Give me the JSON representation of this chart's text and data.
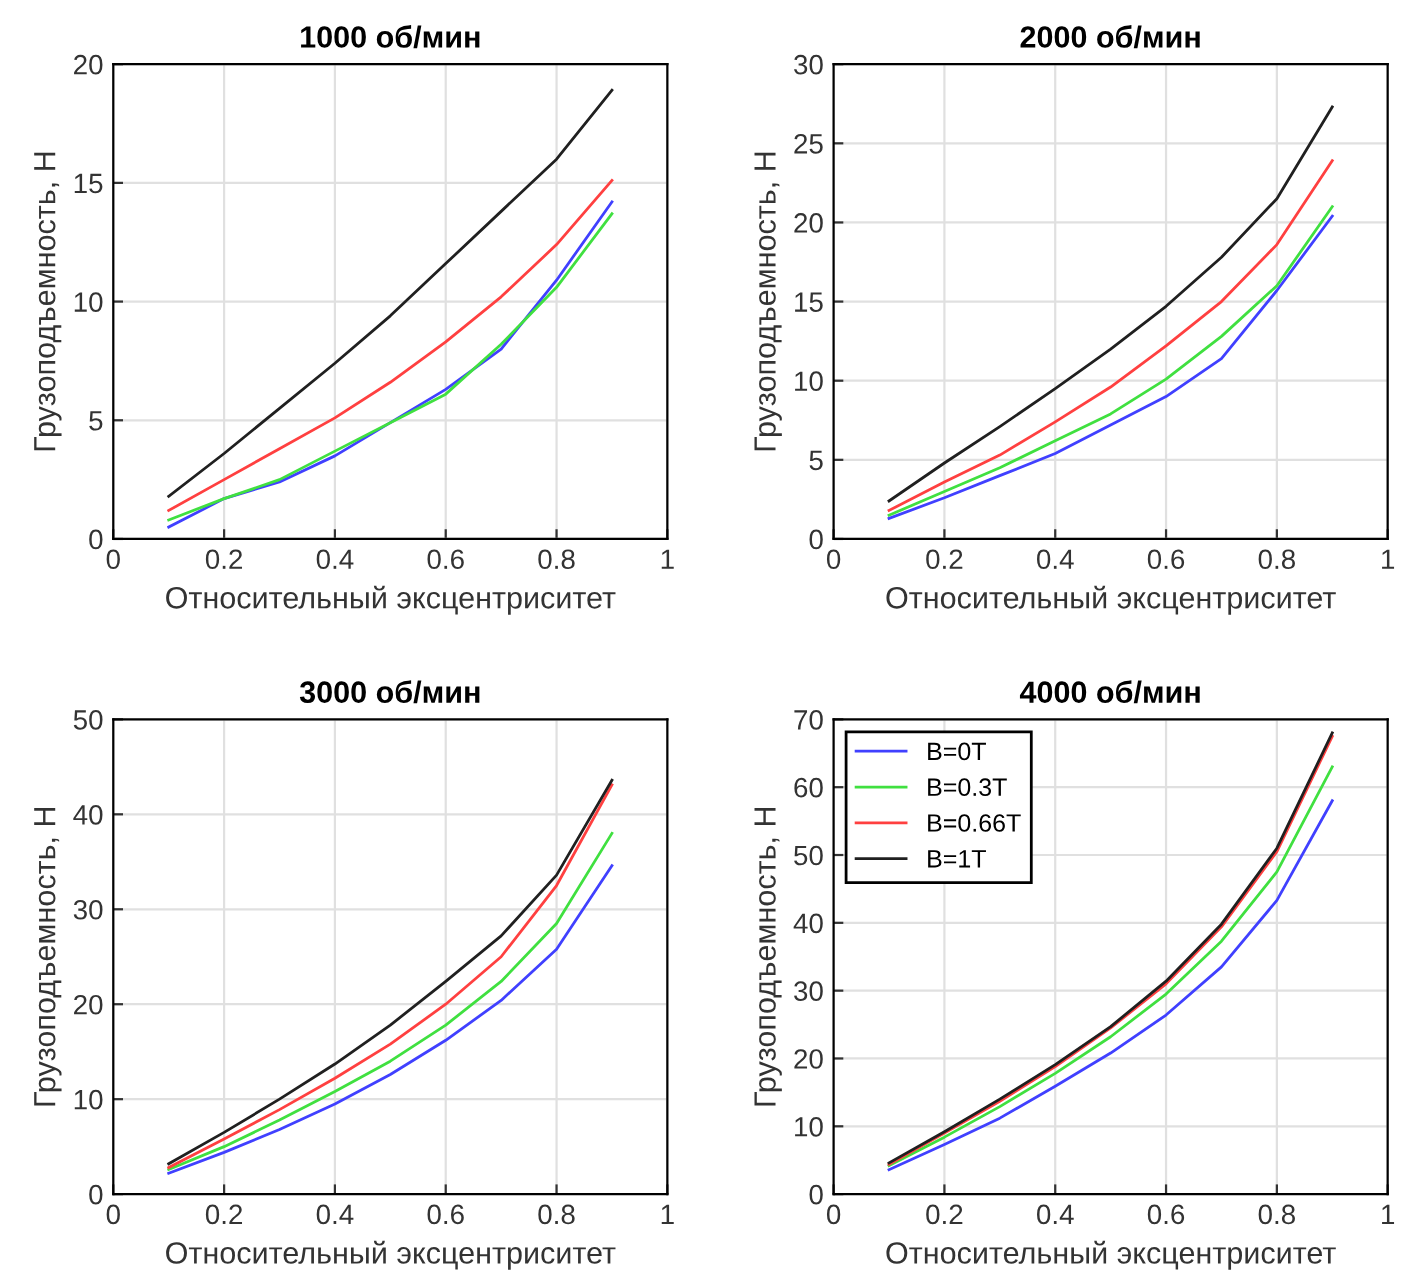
{
  "chart_data": [
    {
      "type": "line",
      "title": "1000 об/мин",
      "xlabel": "Относительный эксцентриситет",
      "ylabel": "Грузоподъемность, Н",
      "x": [
        0.1,
        0.2,
        0.3,
        0.4,
        0.5,
        0.6,
        0.7,
        0.8,
        0.9
      ],
      "xlim": [
        0,
        1
      ],
      "ylim": [
        0,
        20
      ],
      "xticks": [
        0,
        0.2,
        0.4,
        0.6,
        0.8,
        1
      ],
      "yticks": [
        0,
        5,
        10,
        15,
        20
      ],
      "grid": true,
      "series": [
        {
          "color": "#4040ff",
          "values": [
            0.5,
            1.7,
            2.4,
            3.5,
            4.9,
            6.3,
            8.0,
            10.9,
            14.2
          ]
        },
        {
          "color": "#40e040",
          "values": [
            0.8,
            1.7,
            2.5,
            3.7,
            4.9,
            6.1,
            8.2,
            10.6,
            13.7
          ]
        },
        {
          "color": "#ff4040",
          "values": [
            1.2,
            2.5,
            3.8,
            5.1,
            6.6,
            8.3,
            10.2,
            12.4,
            15.1
          ]
        },
        {
          "color": "#202020",
          "values": [
            1.8,
            3.6,
            5.5,
            7.4,
            9.4,
            11.6,
            13.8,
            16.0,
            18.9
          ]
        }
      ]
    },
    {
      "type": "line",
      "title": "2000 об/мин",
      "xlabel": "Относительный эксцентриситет",
      "ylabel": "Грузоподъемность, Н",
      "x": [
        0.1,
        0.2,
        0.3,
        0.4,
        0.5,
        0.6,
        0.7,
        0.8,
        0.9
      ],
      "xlim": [
        0,
        1
      ],
      "ylim": [
        0,
        30
      ],
      "xticks": [
        0,
        0.2,
        0.4,
        0.6,
        0.8,
        1
      ],
      "yticks": [
        0,
        5,
        10,
        15,
        20,
        25,
        30
      ],
      "grid": true,
      "series": [
        {
          "color": "#4040ff",
          "values": [
            1.3,
            2.6,
            4.0,
            5.4,
            7.2,
            9.0,
            11.4,
            15.7,
            20.4
          ]
        },
        {
          "color": "#40e040",
          "values": [
            1.5,
            3.0,
            4.5,
            6.2,
            7.9,
            10.1,
            12.8,
            16.0,
            21.0
          ]
        },
        {
          "color": "#ff4040",
          "values": [
            1.8,
            3.6,
            5.3,
            7.4,
            9.6,
            12.2,
            15.0,
            18.6,
            23.9
          ]
        },
        {
          "color": "#202020",
          "values": [
            2.4,
            4.8,
            7.1,
            9.5,
            12.0,
            14.7,
            17.8,
            21.5,
            27.3
          ]
        }
      ]
    },
    {
      "type": "line",
      "title": "3000 об/мин",
      "xlabel": "Относительный эксцентриситет",
      "ylabel": "Грузоподъемность, Н",
      "x": [
        0.1,
        0.2,
        0.3,
        0.4,
        0.5,
        0.6,
        0.7,
        0.8,
        0.9
      ],
      "xlim": [
        0,
        1
      ],
      "ylim": [
        0,
        50
      ],
      "xticks": [
        0,
        0.2,
        0.4,
        0.6,
        0.8,
        1
      ],
      "yticks": [
        0,
        10,
        20,
        30,
        40,
        50
      ],
      "grid": true,
      "series": [
        {
          "color": "#4040ff",
          "values": [
            2.2,
            4.4,
            6.8,
            9.5,
            12.6,
            16.2,
            20.4,
            25.8,
            34.6
          ]
        },
        {
          "color": "#40e040",
          "values": [
            2.6,
            5.0,
            7.8,
            10.8,
            14.0,
            17.8,
            22.4,
            28.5,
            38.0
          ]
        },
        {
          "color": "#ff4040",
          "values": [
            2.8,
            5.8,
            8.9,
            12.2,
            15.8,
            20.0,
            25.0,
            32.5,
            43.1
          ]
        },
        {
          "color": "#202020",
          "values": [
            3.2,
            6.5,
            10.0,
            13.7,
            17.8,
            22.4,
            27.2,
            33.6,
            43.6
          ]
        }
      ]
    },
    {
      "type": "line",
      "title": "4000 об/мин",
      "xlabel": "Относительный эксцентриситет",
      "ylabel": "Грузоподъемность, Н",
      "x": [
        0.1,
        0.2,
        0.3,
        0.4,
        0.5,
        0.6,
        0.7,
        0.8,
        0.9
      ],
      "xlim": [
        0,
        1
      ],
      "ylim": [
        0,
        70
      ],
      "xticks": [
        0,
        0.2,
        0.4,
        0.6,
        0.8,
        1
      ],
      "yticks": [
        0,
        10,
        20,
        30,
        40,
        50,
        60,
        70
      ],
      "grid": true,
      "legend": "top left",
      "series": [
        {
          "name": "B=0T",
          "color": "#4040ff",
          "values": [
            3.6,
            7.3,
            11.2,
            15.9,
            20.8,
            26.4,
            33.5,
            43.3,
            58
          ]
        },
        {
          "name": "B=0.3T",
          "color": "#40e040",
          "values": [
            4.2,
            8.4,
            12.9,
            17.8,
            23.2,
            29.5,
            37.3,
            47.5,
            63
          ]
        },
        {
          "name": "B=0.66T",
          "color": "#ff4040",
          "values": [
            4.4,
            9.0,
            13.7,
            18.8,
            24.5,
            31.0,
            39.4,
            50.5,
            67.5
          ]
        },
        {
          "name": "B=1T",
          "color": "#202020",
          "values": [
            4.6,
            9.2,
            14.0,
            19.1,
            24.7,
            31.4,
            39.8,
            51,
            68
          ]
        }
      ]
    }
  ]
}
